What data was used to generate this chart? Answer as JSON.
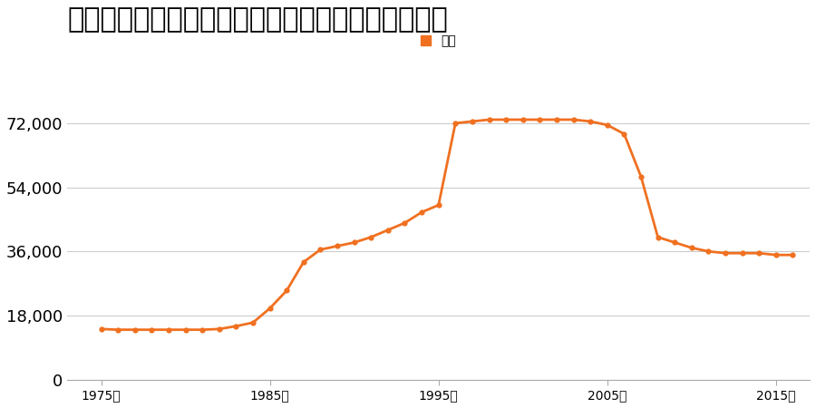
{
  "title": "大分県大分市大字皆春字新田８１５番２の地価推移",
  "legend_label": "価格",
  "line_color": "#f07020",
  "marker_color": "#f07020",
  "background_color": "#ffffff",
  "years": [
    1975,
    1976,
    1977,
    1978,
    1979,
    1980,
    1981,
    1982,
    1983,
    1984,
    1985,
    1986,
    1987,
    1988,
    1989,
    1990,
    1991,
    1992,
    1993,
    1994,
    1995,
    1996,
    1997,
    1998,
    1999,
    2000,
    2001,
    2002,
    2003,
    2004,
    2005,
    2006,
    2007,
    2008,
    2009,
    2010,
    2011,
    2012,
    2013,
    2014,
    2015,
    2016
  ],
  "values": [
    14200,
    14000,
    14000,
    14000,
    14000,
    14000,
    14000,
    14200,
    15000,
    16000,
    20000,
    25000,
    33000,
    36500,
    37500,
    38500,
    40000,
    42000,
    44000,
    47000,
    49000,
    72000,
    72500,
    73000,
    73000,
    73000,
    73000,
    73000,
    73000,
    72500,
    71500,
    69000,
    57000,
    40000,
    38500,
    37000,
    36000,
    35500,
    35500,
    35500,
    35000,
    35000
  ],
  "ylim": [
    0,
    82000
  ],
  "yticks": [
    0,
    18000,
    36000,
    54000,
    72000
  ],
  "xtick_years": [
    1975,
    1985,
    1995,
    2005,
    2015
  ],
  "xlabel_suffix": "年",
  "grid_color": "#cccccc",
  "title_fontsize": 22,
  "legend_fontsize": 13,
  "tick_fontsize": 13
}
